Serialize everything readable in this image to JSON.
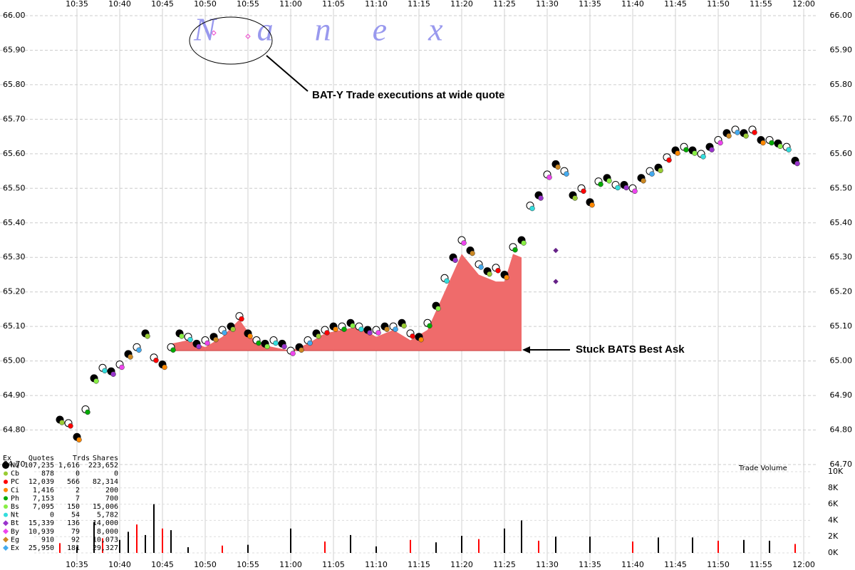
{
  "chart_data": {
    "type": "line",
    "watermark": "Nanex",
    "annotations": [
      "BAT-Y Trade executions at wide quote",
      "Stuck BATS Best Ask"
    ],
    "volume_label": "Trade Volume",
    "xlim": [
      "10:30",
      "12:01"
    ],
    "xticks": [
      "10:35",
      "10:40",
      "10:45",
      "10:50",
      "10:55",
      "11:00",
      "11:05",
      "11:10",
      "11:15",
      "11:20",
      "11:25",
      "11:30",
      "11:35",
      "11:40",
      "11:45",
      "11:50",
      "11:55",
      "12:00"
    ],
    "ylim": [
      64.7,
      66.0
    ],
    "yticks": [
      {
        "value": 64.7,
        "label": "64.70"
      },
      {
        "value": 64.8,
        "label": "64.80"
      },
      {
        "value": 64.9,
        "label": "64.90"
      },
      {
        "value": 65.0,
        "label": "65.00"
      },
      {
        "value": 65.1,
        "label": "65.10"
      },
      {
        "value": 65.2,
        "label": "65.20"
      },
      {
        "value": 65.3,
        "label": "65.30"
      },
      {
        "value": 65.4,
        "label": "65.40"
      },
      {
        "value": 65.5,
        "label": "65.50"
      },
      {
        "value": 65.6,
        "label": "65.60"
      },
      {
        "value": 65.7,
        "label": "65.70"
      },
      {
        "value": 65.8,
        "label": "65.80"
      },
      {
        "value": 65.9,
        "label": "65.90"
      },
      {
        "value": 66.0,
        "label": "66.00"
      }
    ],
    "grid": true,
    "trades": {
      "x": [
        "10:33",
        "10:34",
        "10:35",
        "10:36",
        "10:37",
        "10:38",
        "10:39",
        "10:40",
        "10:41",
        "10:42",
        "10:43",
        "10:44",
        "10:45",
        "10:46",
        "10:47",
        "10:48",
        "10:49",
        "10:50",
        "10:51",
        "10:52",
        "10:53",
        "10:54",
        "10:55",
        "10:56",
        "10:57",
        "10:58",
        "10:59",
        "11:00",
        "11:01",
        "11:02",
        "11:03",
        "11:04",
        "11:05",
        "11:06",
        "11:07",
        "11:08",
        "11:09",
        "11:10",
        "11:11",
        "11:12",
        "11:13",
        "11:14",
        "11:15",
        "11:16",
        "11:17",
        "11:18",
        "11:19",
        "11:20",
        "11:21",
        "11:22",
        "11:23",
        "11:24",
        "11:25",
        "11:26",
        "11:27",
        "11:28",
        "11:29",
        "11:30",
        "11:31",
        "11:32",
        "11:33",
        "11:34",
        "11:35",
        "11:36",
        "11:37",
        "11:38",
        "11:39",
        "11:40",
        "11:41",
        "11:42",
        "11:43",
        "11:44",
        "11:45",
        "11:46",
        "11:47",
        "11:48",
        "11:49",
        "11:50",
        "11:51",
        "11:52",
        "11:53",
        "11:54",
        "11:55",
        "11:56",
        "11:57",
        "11:58",
        "11:59"
      ],
      "values": [
        64.83,
        64.82,
        64.78,
        64.86,
        64.95,
        64.98,
        64.97,
        64.99,
        65.02,
        65.04,
        65.08,
        65.01,
        64.99,
        65.04,
        65.08,
        65.07,
        65.05,
        65.06,
        65.07,
        65.09,
        65.1,
        65.13,
        65.08,
        65.06,
        65.05,
        65.06,
        65.05,
        65.03,
        65.04,
        65.06,
        65.08,
        65.09,
        65.1,
        65.1,
        65.11,
        65.1,
        65.09,
        65.09,
        65.1,
        65.1,
        65.11,
        65.08,
        65.07,
        65.11,
        65.16,
        65.24,
        65.3,
        65.35,
        65.32,
        65.28,
        65.26,
        65.27,
        65.25,
        65.33,
        65.35,
        65.45,
        65.48,
        65.54,
        65.57,
        65.55,
        65.48,
        65.5,
        65.46,
        65.52,
        65.53,
        65.51,
        65.51,
        65.5,
        65.53,
        65.55,
        65.56,
        65.59,
        65.61,
        65.62,
        65.61,
        65.6,
        65.62,
        65.64,
        65.66,
        65.67,
        65.66,
        65.67,
        65.64,
        65.64,
        65.63,
        65.62,
        65.58
      ]
    },
    "wide_quote_trades": {
      "x": [
        "10:51",
        "10:55"
      ],
      "values": [
        65.95,
        65.94
      ],
      "color": "#ee44cc"
    },
    "odd_trades": {
      "x": [
        "11:31",
        "11:31"
      ],
      "values": [
        65.32,
        65.23
      ],
      "color": "#662288"
    },
    "stuck_ask": {
      "base": 65.03,
      "color": "#ef6b6b",
      "x": [
        "10:46",
        "10:48",
        "10:50",
        "10:52",
        "10:54",
        "10:56",
        "10:58",
        "11:00",
        "11:02",
        "11:04",
        "11:06",
        "11:08",
        "11:10",
        "11:12",
        "11:14",
        "11:16",
        "11:18",
        "11:20",
        "11:22",
        "11:24",
        "11:25",
        "11:26",
        "11:27"
      ],
      "values": [
        65.05,
        65.06,
        65.04,
        65.07,
        65.12,
        65.05,
        65.04,
        65.03,
        65.05,
        65.08,
        65.09,
        65.1,
        65.07,
        65.09,
        65.06,
        65.09,
        65.2,
        65.31,
        65.25,
        65.23,
        65.23,
        65.31,
        65.3
      ]
    },
    "volume": {
      "ylim": [
        0,
        10000
      ],
      "yticks": [
        {
          "value": 0,
          "label": "0K"
        },
        {
          "value": 2000,
          "label": "2K"
        },
        {
          "value": 4000,
          "label": "4K"
        },
        {
          "value": 6000,
          "label": "6K"
        },
        {
          "value": 8000,
          "label": "8K"
        },
        {
          "value": 10000,
          "label": "10K"
        }
      ],
      "color": "#000000",
      "x": [
        "10:33",
        "10:35",
        "10:37",
        "10:38",
        "10:40",
        "10:41",
        "10:42",
        "10:43",
        "10:44",
        "10:45",
        "10:46",
        "10:48",
        "10:52",
        "10:55",
        "11:00",
        "11:04",
        "11:07",
        "11:10",
        "11:14",
        "11:17",
        "11:20",
        "11:22",
        "11:25",
        "11:27",
        "11:29",
        "11:31",
        "11:35",
        "11:40",
        "11:43",
        "11:47",
        "11:50",
        "11:53",
        "11:56",
        "11:59"
      ],
      "values": [
        1200,
        800,
        3800,
        1800,
        1600,
        2600,
        3500,
        2200,
        6000,
        3000,
        2800,
        700,
        900,
        1000,
        3000,
        1400,
        2200,
        800,
        1600,
        1300,
        2100,
        1700,
        3000,
        4000,
        1500,
        2000,
        2000,
        1400,
        1900,
        1900,
        1500,
        1600,
        1500,
        1100
      ]
    },
    "exchange_table": {
      "columns": [
        "Ex",
        "Quotes",
        "Trds",
        "Shares"
      ],
      "rows": [
        [
          "NQ",
          "107,235",
          "1,616",
          "223,652"
        ],
        [
          "Cb",
          "878",
          "0",
          "0"
        ],
        [
          "PC",
          "12,039",
          "566",
          "82,314"
        ],
        [
          "Ci",
          "1,416",
          "2",
          "200"
        ],
        [
          "Ph",
          "7,153",
          "7",
          "700"
        ],
        [
          "Bs",
          "7,095",
          "150",
          "15,006"
        ],
        [
          "Nt",
          "0",
          "54",
          "5,782"
        ],
        [
          "Bt",
          "15,339",
          "136",
          "14,000"
        ],
        [
          "By",
          "10,939",
          "79",
          "8,000"
        ],
        [
          "Eg",
          "910",
          "92",
          "10,073"
        ],
        [
          "Ex",
          "25,950",
          "181",
          "29,327"
        ]
      ],
      "colors": [
        "#000000",
        "#99cc33",
        "#ff0000",
        "#ff8800",
        "#00aa00",
        "#88ee44",
        "#33dddd",
        "#9933cc",
        "#ee44ee",
        "#cc8822",
        "#44aaee"
      ]
    }
  }
}
